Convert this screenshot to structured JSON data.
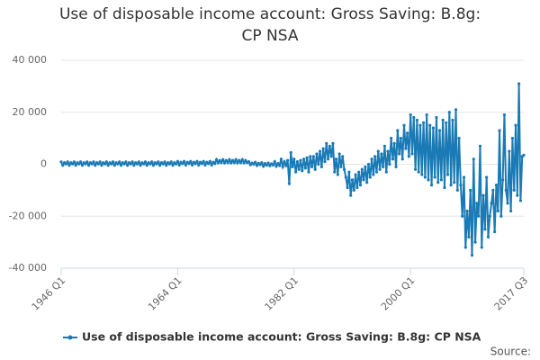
{
  "chart_data": {
    "type": "line",
    "title": "Use of disposable income account: Gross Saving: B.8g: CP NSA",
    "source": "Source:",
    "categories": [
      "1946 Q1",
      null,
      null,
      null,
      null,
      null,
      null,
      null,
      null,
      null,
      null,
      null,
      null,
      null,
      null,
      null,
      null,
      null,
      null,
      null,
      null,
      null,
      null,
      null,
      null,
      null,
      null,
      null,
      null,
      null,
      null,
      null,
      null,
      null,
      null,
      null,
      null,
      null,
      null,
      null,
      null,
      null,
      null,
      null,
      null,
      null,
      null,
      null,
      null,
      null,
      null,
      null,
      null,
      null,
      null,
      null,
      null,
      null,
      null,
      null,
      null,
      null,
      null,
      null,
      null,
      null,
      null,
      null,
      null,
      null,
      null,
      null,
      "1964 Q1",
      null,
      null,
      null,
      null,
      null,
      null,
      null,
      null,
      null,
      null,
      null,
      null,
      null,
      null,
      null,
      null,
      null,
      null,
      null,
      null,
      null,
      null,
      null,
      null,
      null,
      null,
      null,
      null,
      null,
      null,
      null,
      null,
      null,
      null,
      null,
      null,
      null,
      null,
      null,
      null,
      null,
      null,
      null,
      null,
      null,
      null,
      null,
      null,
      null,
      null,
      null,
      null,
      null,
      null,
      null,
      null,
      null,
      null,
      null,
      null,
      null,
      null,
      null,
      null,
      null,
      null,
      null,
      null,
      null,
      null,
      null,
      "1982 Q1",
      null,
      null,
      null,
      null,
      null,
      null,
      null,
      null,
      null,
      null,
      null,
      null,
      null,
      null,
      null,
      null,
      null,
      null,
      null,
      null,
      null,
      null,
      null,
      null,
      null,
      null,
      null,
      null,
      null,
      null,
      null,
      null,
      null,
      null,
      null,
      null,
      null,
      null,
      null,
      null,
      null,
      null,
      null,
      null,
      null,
      null,
      null,
      null,
      null,
      null,
      null,
      null,
      null,
      null,
      null,
      null,
      null,
      null,
      null,
      null,
      null,
      null,
      null,
      null,
      null,
      null,
      null,
      null,
      null,
      null,
      null,
      "2000 Q1",
      null,
      null,
      null,
      null,
      null,
      null,
      null,
      null,
      null,
      null,
      null,
      null,
      null,
      null,
      null,
      null,
      null,
      null,
      null,
      null,
      null,
      null,
      null,
      null,
      null,
      null,
      null,
      null,
      null,
      null,
      null,
      null,
      null,
      null,
      null,
      null,
      null,
      null,
      null,
      null,
      null,
      null,
      null,
      null,
      null,
      null,
      null,
      null,
      null,
      null,
      null,
      null,
      null,
      null,
      null,
      null,
      null,
      null,
      null,
      null,
      null,
      null,
      null,
      null,
      null,
      null,
      null,
      null,
      null,
      "2017 Q3"
    ],
    "series": [
      {
        "name": "Use of disposable income account: Gross Saving: B.8g: CP NSA",
        "color": "#1a7ab5",
        "values": [
          900,
          -400,
          600,
          100,
          900,
          -400,
          600,
          100,
          900,
          -400,
          600,
          100,
          900,
          -400,
          600,
          100,
          900,
          -400,
          600,
          100,
          900,
          -400,
          600,
          100,
          900,
          -400,
          600,
          100,
          900,
          -400,
          600,
          100,
          900,
          -400,
          600,
          100,
          900,
          -400,
          600,
          100,
          900,
          -400,
          600,
          100,
          900,
          -400,
          600,
          100,
          900,
          -400,
          600,
          100,
          900,
          -400,
          600,
          100,
          900,
          -400,
          600,
          100,
          900,
          -400,
          600,
          100,
          900,
          -400,
          600,
          100,
          900,
          -400,
          600,
          100,
          1100,
          -300,
          800,
          200,
          1100,
          -300,
          800,
          200,
          1100,
          -300,
          800,
          200,
          1100,
          -300,
          800,
          200,
          1100,
          -300,
          800,
          200,
          1100,
          -300,
          800,
          200,
          1800,
          500,
          1500,
          600,
          1800,
          500,
          1500,
          600,
          1800,
          500,
          1500,
          600,
          1800,
          500,
          1500,
          600,
          1800,
          500,
          1500,
          600,
          1000,
          -200,
          500,
          0,
          800,
          -500,
          400,
          -200,
          600,
          -800,
          300,
          -400,
          500,
          -600,
          200,
          -300,
          1000,
          -800,
          300,
          -500,
          2000,
          -1000,
          1000,
          -500,
          1500,
          -7500,
          4500,
          -1000,
          2000,
          -3000,
          1000,
          -2000,
          1500,
          -2500,
          2000,
          -1500,
          2500,
          -3000,
          3000,
          -1000,
          3000,
          -2000,
          4000,
          0,
          5000,
          -1000,
          6000,
          1000,
          8000,
          2000,
          7000,
          3000,
          8000,
          -3000,
          2000,
          -4000,
          4000,
          -1000,
          3000,
          -2000,
          -5000,
          -9000,
          -3000,
          -12000,
          -6000,
          -10000,
          -4000,
          -9000,
          -3000,
          -8000,
          -2000,
          -6000,
          -1000,
          -7000,
          0,
          -5000,
          2000,
          -4000,
          3000,
          -3000,
          5000,
          -2000,
          4000,
          -1000,
          7000,
          -3000,
          5000,
          0,
          10000,
          2000,
          8000,
          -1000,
          13000,
          4000,
          10000,
          2000,
          15000,
          6000,
          12000,
          3000,
          19000,
          4000,
          18000,
          -2000,
          17000,
          -3000,
          15000,
          -4000,
          16000,
          -5000,
          19000,
          -6000,
          15000,
          -8000,
          14000,
          -5000,
          18000,
          -7000,
          13000,
          -6000,
          17000,
          -9000,
          16000,
          -4000,
          20000,
          -8000,
          17000,
          -7000,
          21000,
          -10000,
          10000,
          -8000,
          -20000,
          -5000,
          -32000,
          -18000,
          -28000,
          -10000,
          -35000,
          2000,
          -30000,
          -15000,
          -20000,
          7000,
          -32000,
          -12000,
          -25000,
          -5000,
          -28000,
          -20000,
          -15000,
          -10000,
          -26000,
          -8000,
          -18000,
          13000,
          -20000,
          -6000,
          19000,
          -10000,
          -15000,
          5000,
          -18000,
          10000,
          -10000,
          15000,
          -12000,
          31000,
          -14000,
          3000,
          3500
        ]
      }
    ],
    "ylim": [
      -40000,
      40000
    ],
    "yticks": [
      {
        "value": -40000,
        "label": "-40 000"
      },
      {
        "value": -20000,
        "label": "-20 000"
      },
      0,
      {
        "value": 20000,
        "label": "20 000"
      },
      {
        "value": 40000,
        "label": "40 000"
      }
    ],
    "grid": true
  }
}
